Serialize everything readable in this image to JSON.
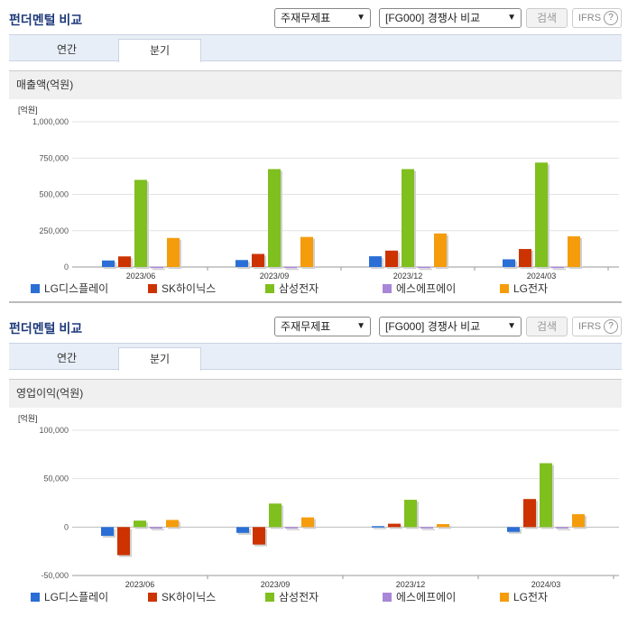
{
  "panels": [
    {
      "title": "펀더멘털 비교",
      "select1": "주재무제표",
      "select2": "[FG000] 경쟁사 비교",
      "search_label": "검색",
      "ifrs_label": "IFRS",
      "ifrs_help": "?",
      "tabs": [
        "연간",
        "분기"
      ],
      "section_label": "매출액(억원)"
    },
    {
      "title": "펀더멘털 비교",
      "select1": "주재무제표",
      "select2": "[FG000] 경쟁사 비교",
      "search_label": "검색",
      "ifrs_label": "IFRS",
      "ifrs_help": "?",
      "tabs": [
        "연간",
        "분기"
      ],
      "section_label": "영업이익(억원)"
    }
  ],
  "legend": [
    {
      "name": "LG디스플레이",
      "color": "#2b6fd6"
    },
    {
      "name": "SK하이닉스",
      "color": "#cc3300"
    },
    {
      "name": "삼성전자",
      "color": "#7fbf1e"
    },
    {
      "name": "에스에프에이",
      "color": "#a987d8"
    },
    {
      "name": "LG전자",
      "color": "#f59c0c"
    }
  ],
  "chart_data": [
    {
      "type": "bar",
      "unit_label": "[억원]",
      "categories": [
        "2023/06",
        "2023/09",
        "2023/12",
        "2024/03"
      ],
      "ylim": [
        0,
        1000000
      ],
      "yticks": [
        0,
        250000,
        500000,
        750000,
        1000000
      ],
      "ytick_labels": [
        "0",
        "250,000",
        "500,000",
        "750,000",
        "1,000,000"
      ],
      "series": [
        {
          "name": "LG디스플레이",
          "color": "#2b6fd6",
          "values": [
            45000,
            48000,
            74000,
            53000
          ]
        },
        {
          "name": "SK하이닉스",
          "color": "#cc3300",
          "values": [
            73000,
            90000,
            113000,
            124000
          ]
        },
        {
          "name": "삼성전자",
          "color": "#7fbf1e",
          "values": [
            600000,
            674000,
            674000,
            719000
          ]
        },
        {
          "name": "에스에프에이",
          "color": "#a987d8",
          "values": [
            1500,
            1400,
            1500,
            1300
          ]
        },
        {
          "name": "LG전자",
          "color": "#f59c0c",
          "values": [
            200000,
            207000,
            231000,
            211000
          ]
        }
      ]
    },
    {
      "type": "bar",
      "unit_label": "[억원]",
      "categories": [
        "2023/06",
        "2023/09",
        "2023/12",
        "2024/03"
      ],
      "ylim": [
        -50000,
        100000
      ],
      "yticks": [
        -50000,
        0,
        50000,
        100000
      ],
      "ytick_labels": [
        "-50,000",
        "0",
        "50,000",
        "100,000"
      ],
      "series": [
        {
          "name": "LG디스플레이",
          "color": "#2b6fd6",
          "values": [
            -9000,
            -6000,
            1000,
            -5000
          ]
        },
        {
          "name": "SK하이닉스",
          "color": "#cc3300",
          "values": [
            -29000,
            -18000,
            3500,
            29000
          ]
        },
        {
          "name": "삼성전자",
          "color": "#7fbf1e",
          "values": [
            6700,
            24300,
            28200,
            66000
          ]
        },
        {
          "name": "에스에프에이",
          "color": "#a987d8",
          "values": [
            -1500,
            -400,
            -1000,
            -1000
          ]
        },
        {
          "name": "LG전자",
          "color": "#f59c0c",
          "values": [
            7400,
            10000,
            3100,
            13300
          ]
        }
      ]
    }
  ]
}
